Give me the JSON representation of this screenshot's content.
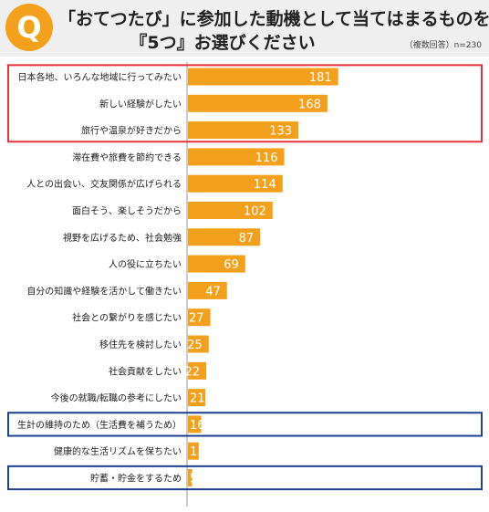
{
  "header": {
    "badge": "Q",
    "title_line1": "「おてつたび」に参加した動機として当てはまるものを",
    "title_line2": "『5つ』お選びください",
    "note": "（複数回答）n=230"
  },
  "colors": {
    "bar": "#f3a01c",
    "highlight_red": "#e8323c",
    "highlight_blue": "#1f3f8f",
    "header_bg": "#efefef",
    "divider": "#9a9a9a"
  },
  "chart_data": {
    "type": "bar",
    "orientation": "horizontal",
    "categories": [
      "日本各地、いろんな地域に行ってみたい",
      "新しい経験がしたい",
      "旅行や温泉が好きだから",
      "滞在費や旅費を節約できる",
      "人との出会い、交友関係が広げられる",
      "面白そう、楽しそうだから",
      "視野を広げるため、社会勉強",
      "人の役に立ちたい",
      "自分の知識や経験を活かして働きたい",
      "社会との繋がりを感じたい",
      "移住先を検討したい",
      "社会貢献をしたい",
      "今後の就職/転職の参考にしたい",
      "生計の維持のため（生活費を補うため）",
      "健康的な生活リズムを保ちたい",
      "貯蓄・貯金をするため"
    ],
    "values": [
      181,
      168,
      133,
      116,
      114,
      102,
      87,
      69,
      47,
      27,
      25,
      22,
      21,
      16,
      13,
      5
    ],
    "xlim": [
      0,
      200
    ],
    "grid": false,
    "highlight_groups": [
      {
        "color": "red",
        "indices": [
          0,
          1,
          2
        ]
      },
      {
        "color": "blue",
        "indices": [
          13
        ]
      },
      {
        "color": "blue",
        "indices": [
          15
        ]
      }
    ]
  }
}
